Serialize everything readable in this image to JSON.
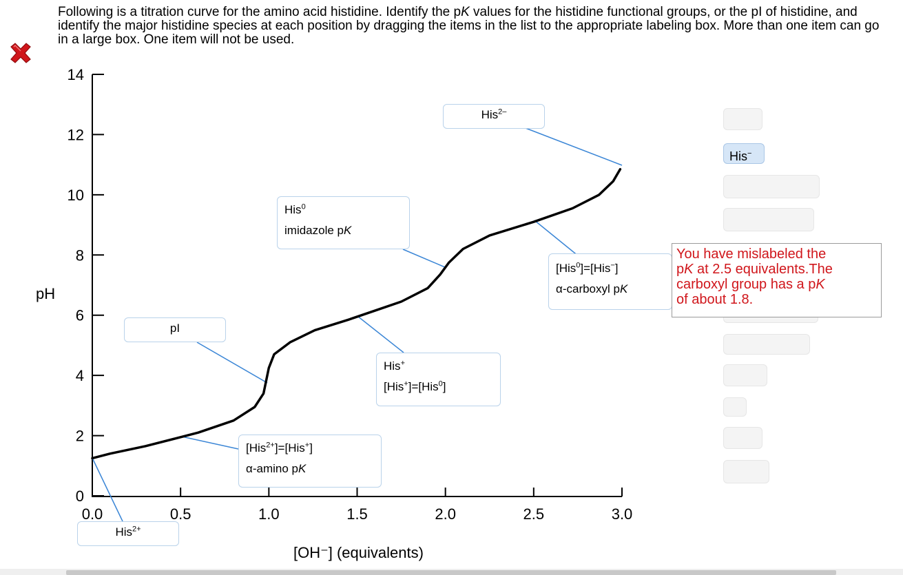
{
  "question": {
    "text_part1": "Following is a titration curve for the amino acid histidine. Identify the p",
    "text_k": "K",
    "text_part2": " values for the histidine functional groups, or the pI of histidine, and identify the major histidine species at each position by dragging the items in the list to the appropriate labeling box. More than one item can go in a large box. One item will not be used."
  },
  "status": {
    "icon": "red-x-icon",
    "color": "#d0161b"
  },
  "chart_data": {
    "type": "line",
    "xlabel": "[OH⁻] (equivalents)",
    "ylabel": "pH",
    "xlim": [
      0,
      3.0
    ],
    "ylim": [
      0,
      14
    ],
    "xticks": [
      "0.0",
      "0.5",
      "1.0",
      "1.5",
      "2.0",
      "2.5",
      "3.0"
    ],
    "yticks": [
      "0",
      "2",
      "4",
      "6",
      "8",
      "10",
      "12",
      "14"
    ],
    "series": [
      {
        "x": [
          0.0,
          0.1,
          0.3,
          0.5,
          0.6,
          0.8,
          0.92,
          0.97,
          1.0,
          1.03,
          1.12,
          1.26,
          1.45,
          1.6,
          1.75,
          1.9,
          1.97,
          2.02,
          2.1,
          2.25,
          2.5,
          2.72,
          2.87,
          2.95,
          2.99
        ],
        "y": [
          1.25,
          1.4,
          1.65,
          1.95,
          2.1,
          2.5,
          2.95,
          3.4,
          4.25,
          4.7,
          5.1,
          5.5,
          5.85,
          6.15,
          6.45,
          6.9,
          7.35,
          7.75,
          8.2,
          8.65,
          9.1,
          9.55,
          10.0,
          10.45,
          10.85
        ]
      }
    ],
    "color": "#000000",
    "leader_color": "#3b86d6"
  },
  "label_boxes": [
    {
      "id": "his2minus",
      "main": "His",
      "sup": "2–",
      "line2": ""
    },
    {
      "id": "his0-imidazole",
      "main": "His",
      "sup": "0",
      "line2a": "imidazole p",
      "line2b": "K"
    },
    {
      "id": "pi",
      "main": "pI",
      "sup": "",
      "line2": ""
    },
    {
      "id": "hisplus",
      "main": "His",
      "sup": "+",
      "line2a": "[His",
      "line2sup1": "+",
      "line2c": "]=[His",
      "line2sup2": "0",
      "line2d": "]"
    },
    {
      "id": "his2plus-his",
      "main1": "[His",
      "sup1": "2+",
      "main2": "]=[His",
      "sup2": "+",
      "main3": "]",
      "line2a": "α-amino p",
      "line2b": "K"
    },
    {
      "id": "his0-hisminus",
      "main1": "[His",
      "sup1": "0",
      "main2": "]=[His",
      "sup2": "−",
      "main3": "]",
      "line2a": "α-carboxyl p",
      "line2b": "K"
    },
    {
      "id": "his2plus",
      "main": "His",
      "sup": "2+"
    }
  ],
  "item_bank": {
    "active_item": {
      "main": "His",
      "sup": "−"
    }
  },
  "feedback": {
    "line1": "You have mislabeled the",
    "line2a": "p",
    "line2b": "K",
    "line2c": " at 2.5 equivalents.The",
    "line3a": "carboxyl group has a p",
    "line3b": "K",
    "line4": "of about 1.8."
  }
}
